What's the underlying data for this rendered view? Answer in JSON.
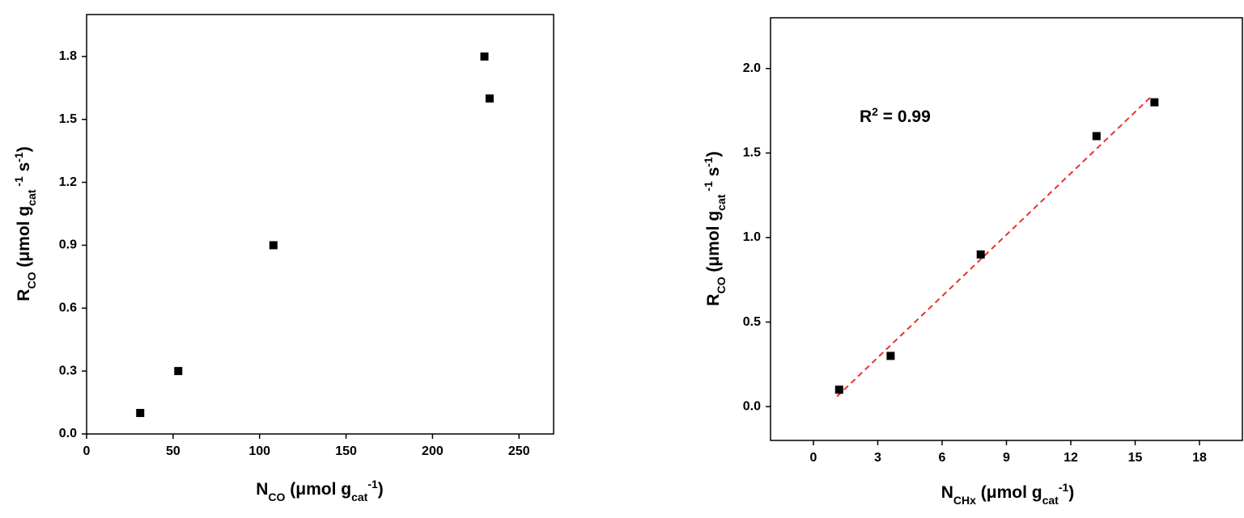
{
  "chart_data": [
    {
      "type": "scatter",
      "x_label": [
        {
          "text": "N"
        },
        {
          "text": "CO",
          "shift": "sub"
        },
        {
          "text": " (μmol g"
        },
        {
          "text": "cat",
          "shift": "sub"
        },
        {
          "text": "-1",
          "shift": "super"
        },
        {
          "text": ")"
        }
      ],
      "y_label": [
        {
          "text": "R"
        },
        {
          "text": "CO",
          "shift": "sub"
        },
        {
          "text": " (μmol g"
        },
        {
          "text": "cat",
          "shift": "sub"
        },
        {
          "text": " -1",
          "shift": "super"
        },
        {
          "text": " s"
        },
        {
          "text": "-1",
          "shift": "super"
        },
        {
          "text": ")"
        }
      ],
      "x": [
        31,
        53,
        108,
        230,
        233
      ],
      "y": [
        0.1,
        0.3,
        0.9,
        1.8,
        1.6
      ],
      "color": "#000000",
      "xlim": [
        0,
        270
      ],
      "xticks": [
        0,
        50,
        100,
        150,
        200,
        250
      ],
      "ylim": [
        0,
        2.0
      ],
      "yticks": [
        {
          "value": 0,
          "label": "0.0"
        },
        0.3,
        0.6,
        0.9,
        1.2,
        1.5,
        1.8
      ]
    },
    {
      "type": "scatter",
      "x_label": [
        {
          "text": "N"
        },
        {
          "text": "CHx",
          "shift": "sub"
        },
        {
          "text": " (μmol g"
        },
        {
          "text": "cat",
          "shift": "sub"
        },
        {
          "text": "-1",
          "shift": "super"
        },
        {
          "text": ")"
        }
      ],
      "y_label": [
        {
          "text": "R"
        },
        {
          "text": "CO",
          "shift": "sub"
        },
        {
          "text": " (μmol g"
        },
        {
          "text": "cat",
          "shift": "sub"
        },
        {
          "text": " -1",
          "shift": "super"
        },
        {
          "text": " s"
        },
        {
          "text": "-1",
          "shift": "super"
        },
        {
          "text": ")"
        }
      ],
      "annotation": [
        {
          "text": "R"
        },
        {
          "text": "2",
          "shift": "super"
        },
        {
          "text": " = 0.99"
        }
      ],
      "x": [
        1.2,
        3.6,
        7.8,
        13.2,
        15.9
      ],
      "y": [
        0.1,
        0.3,
        0.9,
        1.6,
        1.8
      ],
      "color": "#000000",
      "fit": {
        "x": [
          1.1,
          15.8
        ],
        "y": [
          0.06,
          1.84
        ],
        "color": "#e8312f",
        "dashed": true
      },
      "xlim": [
        -2,
        20
      ],
      "xticks": [
        0,
        3,
        6,
        9,
        12,
        15,
        18
      ],
      "ylim": [
        -0.2,
        2.3
      ],
      "yticks": [
        {
          "value": 0,
          "label": "0.0"
        },
        0.5,
        {
          "value": 1,
          "label": "1.0"
        },
        1.5,
        {
          "value": 2,
          "label": "2.0"
        }
      ]
    }
  ]
}
